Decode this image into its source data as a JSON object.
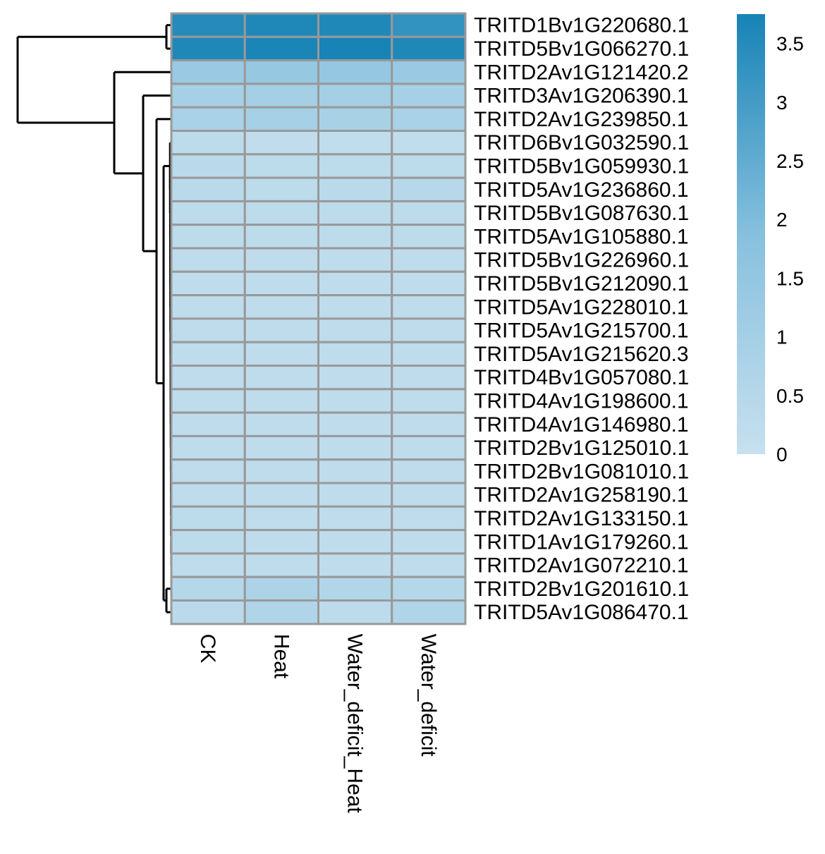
{
  "chart_data": {
    "type": "heatmap",
    "title": "",
    "xlabel": "",
    "ylabel": "",
    "columns": [
      "CK",
      "Heat",
      "Water_deficit_Heat",
      "Water_deficit"
    ],
    "rows": [
      "TRITD1Bv1G220680.1",
      "TRITD5Bv1G066270.1",
      "TRITD2Av1G121420.2",
      "TRITD3Av1G206390.1",
      "TRITD2Av1G239850.1",
      "TRITD6Bv1G032590.1",
      "TRITD5Bv1G059930.1",
      "TRITD5Av1G236860.1",
      "TRITD5Bv1G087630.1",
      "TRITD5Av1G105880.1",
      "TRITD5Bv1G226960.1",
      "TRITD5Bv1G212090.1",
      "TRITD5Av1G228010.1",
      "TRITD5Av1G215700.1",
      "TRITD5Av1G215620.3",
      "TRITD4Bv1G057080.1",
      "TRITD4Av1G198600.1",
      "TRITD4Av1G146980.1",
      "TRITD2Bv1G125010.1",
      "TRITD2Bv1G081010.1",
      "TRITD2Av1G258190.1",
      "TRITD2Av1G133150.1",
      "TRITD1Av1G179260.1",
      "TRITD2Av1G072210.1",
      "TRITD2Bv1G201610.1",
      "TRITD5Av1G086470.1"
    ],
    "values": [
      [
        3.5,
        3.6,
        3.6,
        3.3
      ],
      [
        3.6,
        3.7,
        3.75,
        3.6
      ],
      [
        1.3,
        1.4,
        1.45,
        1.3
      ],
      [
        0.95,
        1.0,
        1.0,
        0.95
      ],
      [
        0.85,
        0.95,
        0.9,
        0.85
      ],
      [
        0.3,
        0.15,
        0.2,
        0.2
      ],
      [
        0.35,
        0.3,
        0.3,
        0.3
      ],
      [
        0.35,
        0.3,
        0.35,
        0.45
      ],
      [
        0.3,
        0.3,
        0.3,
        0.3
      ],
      [
        0.3,
        0.3,
        0.3,
        0.3
      ],
      [
        0.25,
        0.25,
        0.25,
        0.25
      ],
      [
        0.25,
        0.25,
        0.25,
        0.25
      ],
      [
        0.25,
        0.25,
        0.25,
        0.25
      ],
      [
        0.25,
        0.25,
        0.25,
        0.25
      ],
      [
        0.25,
        0.25,
        0.25,
        0.25
      ],
      [
        0.25,
        0.25,
        0.25,
        0.25
      ],
      [
        0.25,
        0.25,
        0.25,
        0.25
      ],
      [
        0.25,
        0.25,
        0.25,
        0.25
      ],
      [
        0.25,
        0.25,
        0.25,
        0.25
      ],
      [
        0.25,
        0.25,
        0.25,
        0.25
      ],
      [
        0.25,
        0.25,
        0.25,
        0.25
      ],
      [
        0.3,
        0.25,
        0.25,
        0.25
      ],
      [
        0.3,
        0.25,
        0.25,
        0.25
      ],
      [
        0.25,
        0.25,
        0.25,
        0.25
      ],
      [
        0.55,
        0.75,
        0.6,
        0.5
      ],
      [
        0.35,
        0.65,
        0.3,
        0.65
      ]
    ],
    "color_scale": {
      "min": 0,
      "max": 3.75,
      "low_color": "#c6e0ee",
      "mid_color": "#87c0de",
      "high_color": "#1783b6",
      "ticks": [
        0,
        0.5,
        1,
        1.5,
        2,
        2.5,
        3,
        3.5
      ],
      "tick_labels": [
        "0",
        "0.5",
        "1",
        "1.5",
        "2",
        "2.5",
        "3",
        "3.5"
      ]
    },
    "cell_border_color": "#999999",
    "row_dendrogram": true,
    "legend_position": "right"
  }
}
